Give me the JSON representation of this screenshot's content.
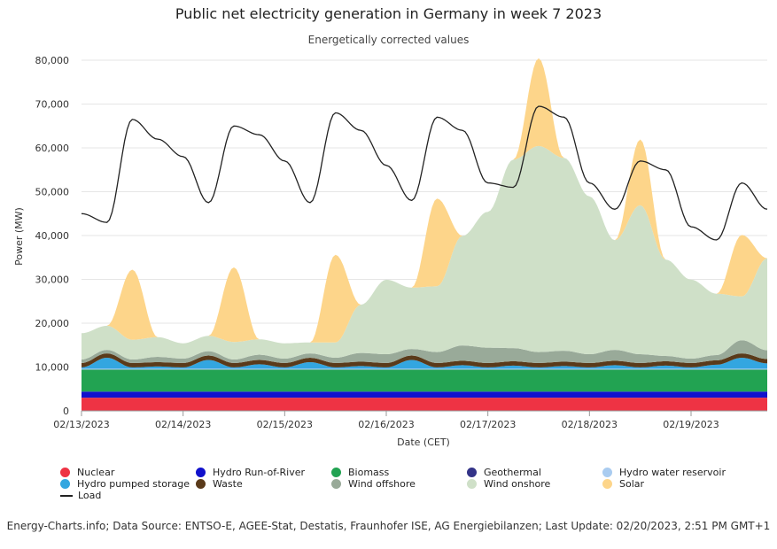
{
  "title": "Public net electricity generation in Germany in week 7 2023",
  "subtitle": "Energetically corrected values",
  "footer": "Energy-Charts.info; Data Source: ENTSO-E, AGEE-Stat, Destatis, Fraunhofer ISE, AG Energiebilanzen; Last Update: 02/20/2023, 2:51 PM GMT+1",
  "chart_data": {
    "type": "area",
    "title": "Public net electricity generation in Germany in week 7 2023",
    "subtitle": "Energetically corrected values",
    "xlabel": "Date (CET)",
    "ylabel": "Power (MW)",
    "ylim": [
      0,
      80000
    ],
    "yticks": [
      "0",
      "10,000",
      "20,000",
      "30,000",
      "40,000",
      "50,000",
      "60,000",
      "70,000",
      "80,000"
    ],
    "xticks": [
      "02/13/2023",
      "02/14/2023",
      "02/15/2023",
      "02/16/2023",
      "02/17/2023",
      "02/18/2023",
      "02/19/2023"
    ],
    "x_days": [
      0,
      0.25,
      0.5,
      0.75,
      1,
      1.25,
      1.5,
      1.75,
      2,
      2.25,
      2.5,
      2.75,
      3,
      3.25,
      3.5,
      3.75,
      4,
      4.25,
      4.5,
      4.75,
      5,
      5.25,
      5.5,
      5.75,
      6,
      6.25,
      6.5,
      6.75
    ],
    "series": [
      {
        "name": "Nuclear",
        "color": "#ee3344",
        "values": [
          3000,
          3000,
          3000,
          3000,
          3000,
          3000,
          3000,
          3000,
          3000,
          3000,
          3000,
          3000,
          3000,
          3000,
          3000,
          3000,
          3000,
          3000,
          3000,
          3000,
          3000,
          3000,
          3000,
          3000,
          3000,
          3000,
          3000,
          3000
        ]
      },
      {
        "name": "Hydro Run-of-River",
        "color": "#1111cc",
        "values": [
          1400,
          1400,
          1400,
          1400,
          1400,
          1400,
          1400,
          1400,
          1400,
          1400,
          1400,
          1400,
          1400,
          1400,
          1400,
          1400,
          1400,
          1400,
          1400,
          1400,
          1400,
          1400,
          1400,
          1400,
          1400,
          1400,
          1400,
          1400
        ]
      },
      {
        "name": "Biomass",
        "color": "#22a352",
        "values": [
          5000,
          5000,
          5000,
          5000,
          5000,
          5000,
          5000,
          5000,
          5000,
          5000,
          5000,
          5000,
          5000,
          5000,
          5000,
          5000,
          5000,
          5000,
          5000,
          5000,
          5000,
          5000,
          5000,
          5000,
          5000,
          5000,
          5000,
          5000
        ]
      },
      {
        "name": "Geothermal",
        "color": "#333388",
        "values": [
          20,
          20,
          20,
          20,
          20,
          20,
          20,
          20,
          20,
          20,
          20,
          20,
          20,
          20,
          20,
          20,
          20,
          20,
          20,
          20,
          20,
          20,
          20,
          20,
          20,
          20,
          20,
          20
        ]
      },
      {
        "name": "Hydro water reservoir",
        "color": "#aaccf0",
        "values": [
          200,
          200,
          200,
          200,
          200,
          200,
          200,
          200,
          200,
          200,
          200,
          200,
          200,
          200,
          200,
          200,
          200,
          200,
          200,
          200,
          200,
          200,
          200,
          200,
          200,
          200,
          200,
          200
        ]
      },
      {
        "name": "Hydro pumped storage",
        "color": "#33a6e0",
        "values": [
          300,
          2500,
          300,
          500,
          300,
          2000,
          300,
          1000,
          300,
          1500,
          300,
          600,
          300,
          2000,
          300,
          800,
          300,
          700,
          300,
          600,
          300,
          800,
          300,
          700,
          300,
          900,
          2500,
          1200
        ]
      },
      {
        "name": "Waste",
        "color": "#5a3a1a",
        "values": [
          1000,
          1000,
          1000,
          1000,
          1000,
          1000,
          1000,
          1000,
          1000,
          1000,
          1000,
          1000,
          1000,
          1000,
          1000,
          1000,
          1000,
          1000,
          1000,
          1000,
          1000,
          1000,
          1000,
          1000,
          1000,
          1000,
          1000,
          1000
        ]
      },
      {
        "name": "Wind offshore",
        "color": "#99aa99",
        "values": [
          800,
          800,
          800,
          1200,
          1000,
          1000,
          800,
          1200,
          1000,
          1000,
          1200,
          2000,
          2000,
          1500,
          2500,
          3500,
          3500,
          3000,
          2500,
          2500,
          2000,
          2500,
          2000,
          1200,
          1000,
          1200,
          3000,
          2000
        ]
      },
      {
        "name": "Wind onshore",
        "color": "#cfe0c8",
        "values": [
          6000,
          5500,
          4500,
          4500,
          3500,
          3500,
          4000,
          3500,
          3500,
          2500,
          3500,
          11000,
          17000,
          14000,
          15000,
          25000,
          31000,
          43000,
          47000,
          44000,
          36000,
          25000,
          34000,
          22000,
          18000,
          14000,
          10000,
          21000
        ]
      },
      {
        "name": "Solar",
        "color": "#fdd58a",
        "values": [
          0,
          0,
          16000,
          0,
          0,
          0,
          17000,
          0,
          0,
          0,
          20000,
          0,
          0,
          0,
          20000,
          0,
          0,
          0,
          20000,
          0,
          0,
          0,
          15000,
          0,
          0,
          0,
          14000,
          0
        ]
      }
    ],
    "load": {
      "name": "Load",
      "color": "#222222",
      "values": [
        45000,
        43000,
        66500,
        62000,
        58000,
        47500,
        65000,
        63000,
        57000,
        47500,
        68000,
        64000,
        56000,
        48000,
        67000,
        64000,
        52000,
        51000,
        69500,
        67000,
        52000,
        46000,
        57000,
        55000,
        42000,
        39000,
        52000,
        46000
      ]
    }
  }
}
